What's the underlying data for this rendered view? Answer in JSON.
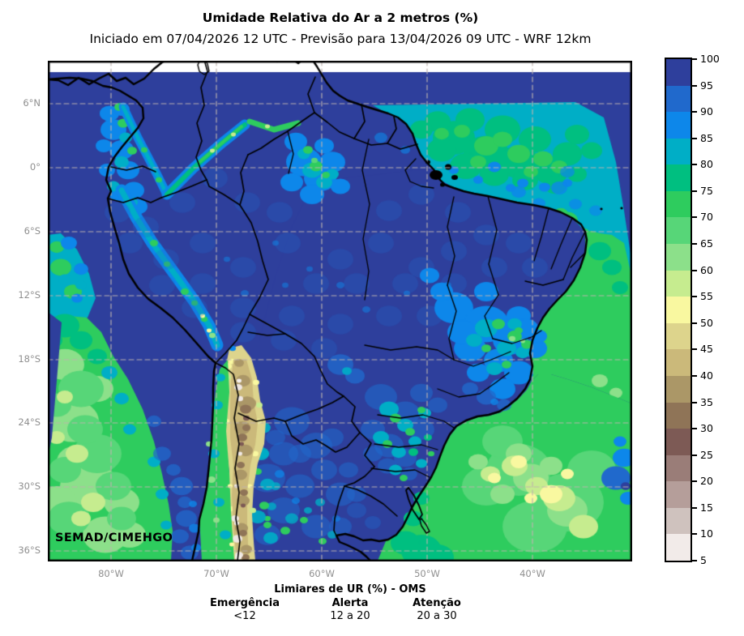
{
  "header": {
    "title": "Umidade Relativa do Ar a 2 metros (%)",
    "subtitle": "Iniciado em 07/04/2026 12 UTC - Previsão para 13/04/2026 09 UTC - WRF 12km"
  },
  "map": {
    "watermark": "SEMAD/CIMEHGO",
    "lat_ticks": [
      "6°N",
      "0°",
      "6°S",
      "12°S",
      "18°S",
      "24°S",
      "30°S",
      "36°S"
    ],
    "lon_ticks": [
      "80°W",
      "70°W",
      "60°W",
      "50°W",
      "40°W"
    ]
  },
  "colorbar": {
    "unit": "%",
    "tick_values": [
      100,
      95,
      90,
      85,
      80,
      75,
      70,
      65,
      60,
      55,
      50,
      45,
      40,
      35,
      30,
      25,
      20,
      15,
      10,
      5
    ],
    "band_colors_top_to_bottom": [
      "#2e3f9c",
      "#2069cc",
      "#0d87ea",
      "#00aec6",
      "#00bf80",
      "#2ecc5e",
      "#57d678",
      "#8ce08a",
      "#c6ec8f",
      "#f9f8a0",
      "#ddd48c",
      "#cbb97a",
      "#ab9767",
      "#8f7457",
      "#7d5a55",
      "#9a7d78",
      "#b59e9a",
      "#cfc2be",
      "#f2ebe9"
    ]
  },
  "footer": {
    "title": "Limiares de UR (%) - OMS",
    "thresholds": [
      {
        "label": "Emergência",
        "range": "<12"
      },
      {
        "label": "Alerta",
        "range": "12 a 20"
      },
      {
        "label": "Atenção",
        "range": "20 a 30"
      }
    ]
  }
}
